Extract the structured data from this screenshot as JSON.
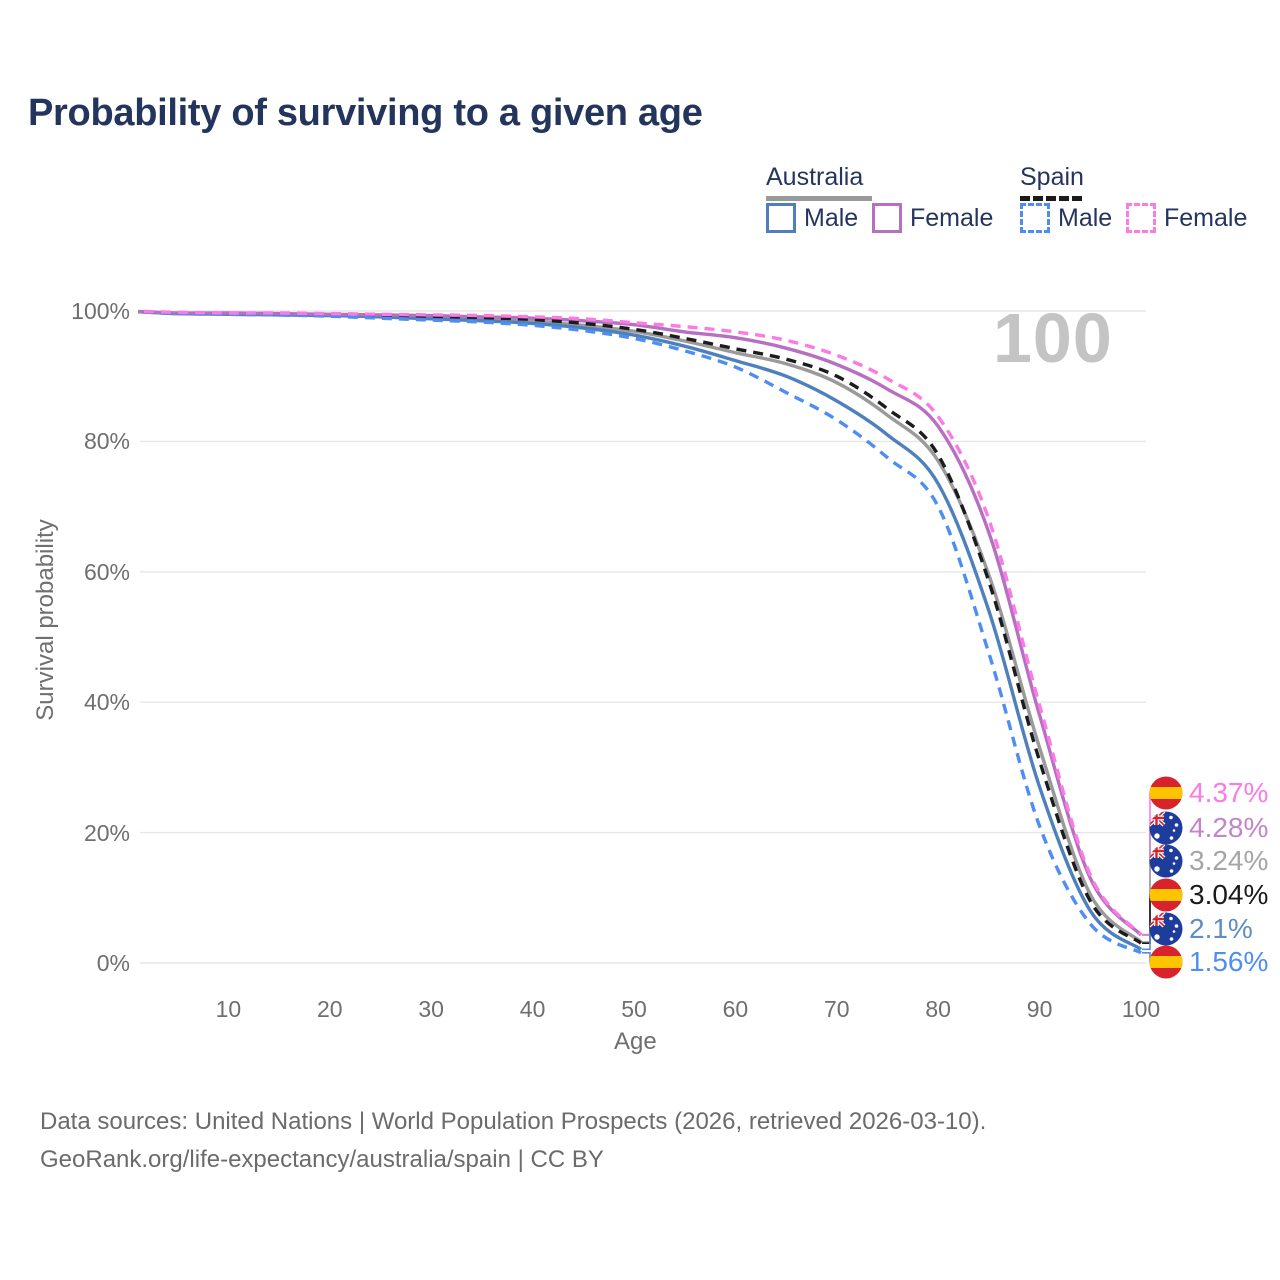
{
  "title": "Probability of surviving to a given age",
  "watermark": "100",
  "legend": {
    "groups": [
      {
        "name": "Australia",
        "line_style": "solid",
        "underline_color": "#9a9a9a",
        "items": [
          {
            "label": "Male",
            "color": "#4e80be",
            "dashed": false
          },
          {
            "label": "Female",
            "color": "#b76fc2",
            "dashed": false
          }
        ]
      },
      {
        "name": "Spain",
        "line_style": "dashed",
        "underline_color": "#1b1b1b",
        "items": [
          {
            "label": "Male",
            "color": "#4e8ef2",
            "dashed": true
          },
          {
            "label": "Female",
            "color": "#fb7ae3",
            "dashed": true
          }
        ]
      }
    ]
  },
  "chart_data": {
    "type": "line",
    "title": "Probability of surviving to a given age",
    "xlabel": "Age",
    "ylabel": "Survival probability",
    "xlim": [
      0,
      100
    ],
    "ylim": [
      0,
      100
    ],
    "grid": "horizontal",
    "x_ticks": [
      10,
      20,
      30,
      40,
      50,
      60,
      70,
      80,
      90,
      100
    ],
    "y_ticks": [
      0,
      20,
      40,
      60,
      80,
      100
    ],
    "y_tick_labels": [
      "0%",
      "20%",
      "40%",
      "60%",
      "80%",
      "100%"
    ],
    "x": [
      0,
      5,
      10,
      15,
      20,
      25,
      30,
      35,
      40,
      45,
      50,
      55,
      60,
      65,
      70,
      75,
      80,
      85,
      90,
      95,
      100
    ],
    "series": [
      {
        "name": "Australia total",
        "country": "australia",
        "sex": "total",
        "color": "#9a9a9a",
        "dashed": false,
        "values": [
          100,
          99.6,
          99.6,
          99.5,
          99.4,
          99.2,
          99.0,
          98.7,
          98.4,
          97.8,
          96.9,
          95.4,
          93.6,
          91.9,
          89.0,
          84.0,
          77.0,
          59.5,
          33.0,
          10.5,
          3.24
        ],
        "end_label": "3.24%"
      },
      {
        "name": "Australia male",
        "country": "australia",
        "sex": "male",
        "color": "#4e80be",
        "dashed": false,
        "values": [
          100,
          99.6,
          99.5,
          99.4,
          99.3,
          99.1,
          98.8,
          98.5,
          98.1,
          97.4,
          96.3,
          94.6,
          92.4,
          90.0,
          86.2,
          81.0,
          73.5,
          54.0,
          27.0,
          8.0,
          2.1
        ],
        "end_label": "2.1%"
      },
      {
        "name": "Australia female",
        "country": "australia",
        "sex": "female",
        "color": "#b76fc2",
        "dashed": false,
        "values": [
          100,
          99.7,
          99.7,
          99.6,
          99.5,
          99.4,
          99.3,
          99.1,
          98.9,
          98.5,
          97.9,
          96.8,
          95.9,
          94.3,
          91.8,
          88.0,
          82.3,
          66.0,
          38.0,
          13.0,
          4.28
        ],
        "end_label": "4.28%"
      },
      {
        "name": "Spain total",
        "country": "spain",
        "sex": "total",
        "color": "#1c1c1c",
        "dashed": true,
        "values": [
          100,
          99.7,
          99.6,
          99.6,
          99.5,
          99.4,
          99.2,
          99.0,
          98.7,
          98.1,
          97.2,
          95.8,
          94.2,
          92.6,
          90.0,
          85.0,
          77.9,
          58.5,
          31.0,
          9.5,
          3.04
        ],
        "end_label": "3.04%"
      },
      {
        "name": "Spain male",
        "country": "spain",
        "sex": "male",
        "color": "#4e8ef2",
        "dashed": true,
        "values": [
          100,
          99.6,
          99.5,
          99.4,
          99.2,
          98.9,
          98.6,
          98.3,
          97.8,
          97.0,
          95.8,
          93.9,
          91.4,
          87.5,
          83.3,
          77.5,
          70.0,
          47.5,
          21.0,
          6.0,
          1.56
        ],
        "end_label": "1.56%"
      },
      {
        "name": "Spain female",
        "country": "spain",
        "sex": "female",
        "color": "#fb7ae3",
        "dashed": true,
        "values": [
          100,
          99.8,
          99.7,
          99.7,
          99.6,
          99.5,
          99.4,
          99.3,
          99.1,
          98.8,
          98.2,
          97.6,
          96.8,
          95.5,
          93.2,
          89.6,
          83.8,
          68.0,
          39.5,
          13.5,
          4.37
        ],
        "end_label": "4.37%"
      }
    ],
    "end_labels": [
      {
        "text": "4.37%",
        "value": 4.37,
        "flag": "spain",
        "color": "#fb7ae3"
      },
      {
        "text": "4.28%",
        "value": 4.28,
        "flag": "australia",
        "color": "#c385c8"
      },
      {
        "text": "3.24%",
        "value": 3.24,
        "flag": "australia",
        "color": "#a5a5a5"
      },
      {
        "text": "3.04%",
        "value": 3.04,
        "flag": "spain",
        "color": "#1a1a1a"
      },
      {
        "text": "2.1%",
        "value": 2.1,
        "flag": "australia",
        "color": "#5e8cc8"
      },
      {
        "text": "1.56%",
        "value": 1.56,
        "flag": "spain",
        "color": "#4e8ef2"
      }
    ]
  },
  "footer": {
    "line1": "Data sources: United Nations | World Population Prospects (2026, retrieved 2026-03-10).",
    "line2": "GeoRank.org/life-expectancy/australia/spain | CC BY"
  }
}
